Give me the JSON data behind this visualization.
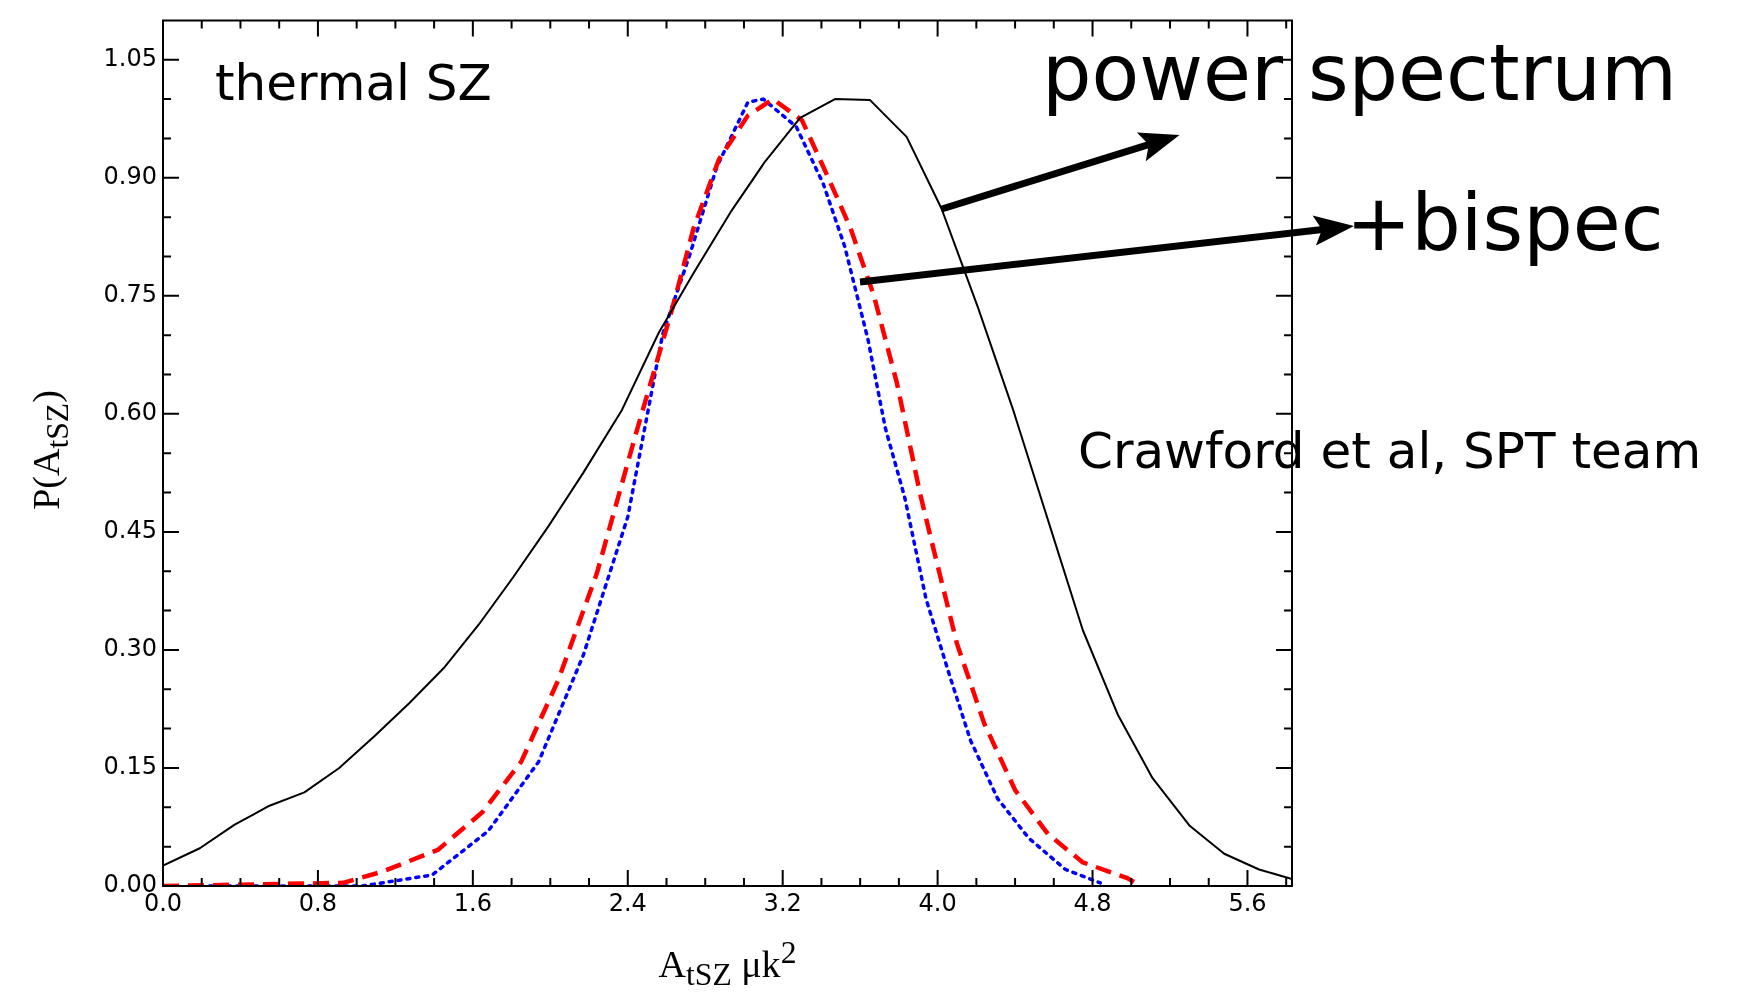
{
  "chart_data": {
    "type": "line",
    "xlabel": "A$_{tSZ}$ μk$^{2}$",
    "ylabel": "P(A$_{tSZ}$)",
    "annotations": [
      "thermal SZ",
      {
        "text": "power spectrum",
        "x": 4.02,
        "y": 0.86
      },
      "+bispec",
      "Crawford et al, SPT team"
    ],
    "xlim": [
      0,
      5.83
    ],
    "ylim": [
      0,
      1.1
    ],
    "xticks": [
      {
        "value": 0,
        "label": "0.0"
      },
      {
        "value": 0.2,
        "label": null
      },
      {
        "value": 0.4,
        "label": null
      },
      {
        "value": 0.6,
        "label": null
      },
      0.8,
      {
        "value": 1.0,
        "label": null
      },
      {
        "value": 1.2,
        "label": null
      },
      {
        "value": 1.4,
        "label": null
      },
      1.6,
      {
        "value": 1.8,
        "label": null
      },
      {
        "value": 2.0,
        "label": null
      },
      {
        "value": 2.2,
        "label": null
      },
      2.4,
      {
        "value": 2.6,
        "label": null
      },
      {
        "value": 2.8,
        "label": null
      },
      {
        "value": 3.0,
        "label": null
      },
      3.2,
      {
        "value": 3.4,
        "label": null
      },
      {
        "value": 3.6,
        "label": null
      },
      {
        "value": 3.8,
        "label": null
      },
      {
        "value": 4.0,
        "label": "4.0"
      },
      {
        "value": 4.2,
        "label": null
      },
      {
        "value": 4.4,
        "label": null
      },
      {
        "value": 4.6,
        "label": null
      },
      4.8,
      {
        "value": 5.0,
        "label": null
      },
      {
        "value": 5.2,
        "label": null
      },
      {
        "value": 5.4,
        "label": null
      },
      5.6,
      {
        "value": 5.8,
        "label": null
      }
    ],
    "yticks": [
      {
        "value": 0,
        "label": "0.00"
      },
      {
        "value": 0.05,
        "label": null
      },
      {
        "value": 0.1,
        "label": null
      },
      0.15,
      {
        "value": 0.2,
        "label": null
      },
      {
        "value": 0.25,
        "label": null
      },
      {
        "value": 0.3,
        "label": "0.30"
      },
      {
        "value": 0.35,
        "label": null
      },
      {
        "value": 0.4,
        "label": null
      },
      0.45,
      {
        "value": 0.5,
        "label": null
      },
      {
        "value": 0.55,
        "label": null
      },
      {
        "value": 0.6,
        "label": "0.60"
      },
      {
        "value": 0.65,
        "label": null
      },
      {
        "value": 0.7,
        "label": null
      },
      0.75,
      {
        "value": 0.8,
        "label": null
      },
      {
        "value": 0.85,
        "label": null
      },
      {
        "value": 0.9,
        "label": "0.90"
      },
      {
        "value": 0.95,
        "label": null
      },
      {
        "value": 1.0,
        "label": null
      },
      1.05
    ],
    "grid": false,
    "legend": false,
    "marker": "none",
    "series": [
      {
        "color": "#000000",
        "line_style": "solid",
        "x": [
          0,
          0.19,
          0.37,
          0.55,
          0.73,
          0.91,
          1.09,
          1.27,
          1.45,
          1.63,
          1.81,
          1.99,
          2.17,
          2.37,
          2.56,
          2.74,
          2.93,
          3.11,
          3.29,
          3.47,
          3.65,
          3.84,
          4.02,
          4.21,
          4.39,
          4.57,
          4.75,
          4.93,
          5.11,
          5.3,
          5.48,
          5.66,
          5.83
        ],
        "values": [
          0.026,
          0.048,
          0.078,
          0.102,
          0.119,
          0.15,
          0.19,
          0.232,
          0.277,
          0.332,
          0.393,
          0.457,
          0.525,
          0.605,
          0.703,
          0.779,
          0.856,
          0.921,
          0.976,
          1.0,
          0.999,
          0.952,
          0.861,
          0.734,
          0.605,
          0.465,
          0.325,
          0.218,
          0.137,
          0.077,
          0.041,
          0.021,
          0.009
        ]
      },
      {
        "color": "#ff0000",
        "line_style": "dashed",
        "x": [
          0,
          0.93,
          1.13,
          1.42,
          1.65,
          1.85,
          2.04,
          2.24,
          2.44,
          2.63,
          2.74,
          2.87,
          3.02,
          3.15,
          3.3,
          3.43,
          3.55,
          3.67,
          3.79,
          3.91,
          3.97,
          4.1,
          4.24,
          4.4,
          4.57,
          4.75,
          4.98,
          5.05
        ],
        "values": [
          0,
          0.004,
          0.018,
          0.046,
          0.094,
          0.158,
          0.261,
          0.397,
          0.573,
          0.734,
          0.836,
          0.923,
          0.979,
          1.0,
          0.973,
          0.903,
          0.836,
          0.751,
          0.639,
          0.498,
          0.437,
          0.308,
          0.207,
          0.122,
          0.066,
          0.03,
          0.01,
          0
        ]
      },
      {
        "color": "#0000ff",
        "line_style": "dotted",
        "x": [
          0.24,
          1.03,
          1.39,
          1.68,
          1.94,
          2.17,
          2.4,
          2.58,
          2.72,
          2.86,
          3.02,
          3.1,
          3.27,
          3.41,
          3.52,
          3.64,
          3.73,
          3.83,
          3.94,
          4.06,
          4.17,
          4.31,
          4.47,
          4.66,
          4.84
        ],
        "values": [
          0,
          0,
          0.014,
          0.07,
          0.158,
          0.293,
          0.469,
          0.701,
          0.802,
          0.914,
          0.996,
          1.0,
          0.965,
          0.892,
          0.813,
          0.695,
          0.582,
          0.494,
          0.365,
          0.269,
          0.185,
          0.111,
          0.061,
          0.021,
          0.004
        ]
      }
    ]
  }
}
